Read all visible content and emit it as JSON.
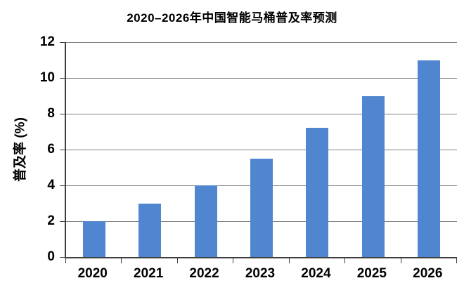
{
  "chart_data": {
    "type": "bar",
    "title": "2020–2026年中国智能马桶普及率预测",
    "categories": [
      "2020",
      "2021",
      "2022",
      "2023",
      "2024",
      "2025",
      "2026"
    ],
    "values": [
      2,
      3,
      4,
      5.5,
      7.2,
      9,
      11
    ],
    "xlabel": "",
    "ylabel": "普及率 (%)",
    "ylim": [
      0,
      12
    ],
    "yticks": [
      0,
      2,
      4,
      6,
      8,
      10,
      12
    ],
    "grid": true,
    "legend_position": "none",
    "colors": {
      "bar": "#4f86cf",
      "gridline": "#808080",
      "axis": "#3f3f3f",
      "text": "#000000",
      "background": "#ffffff"
    }
  }
}
